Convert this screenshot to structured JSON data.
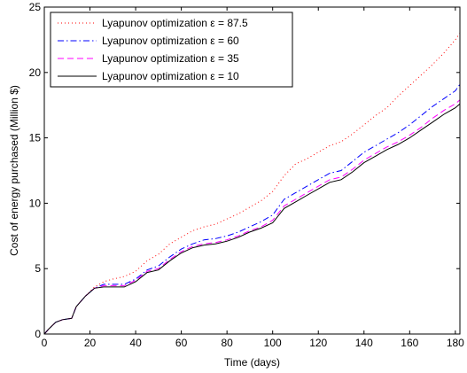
{
  "chart_data": {
    "type": "line",
    "title": "",
    "xlabel": "Time (days)",
    "ylabel": "Cost of energy purchased (Million $)",
    "xlim": [
      0,
      182
    ],
    "ylim": [
      0,
      25
    ],
    "xticks": [
      0,
      20,
      40,
      60,
      80,
      100,
      120,
      140,
      160,
      180
    ],
    "yticks": [
      0,
      5,
      10,
      15,
      20,
      25
    ],
    "grid": false,
    "legend_position": "top-left",
    "series": [
      {
        "name": "Lyapunov optimization ε = 87.5",
        "color": "#ff0000",
        "style": "dotted",
        "x": [
          0,
          2,
          5,
          8,
          12,
          14,
          18,
          22,
          26,
          30,
          35,
          40,
          45,
          50,
          55,
          60,
          65,
          70,
          75,
          80,
          85,
          90,
          95,
          100,
          105,
          110,
          115,
          120,
          125,
          130,
          135,
          140,
          145,
          150,
          155,
          160,
          165,
          170,
          175,
          180,
          182
        ],
        "y": [
          0,
          0.4,
          0.9,
          1.1,
          1.2,
          2.1,
          2.9,
          3.6,
          4.0,
          4.2,
          4.4,
          4.8,
          5.6,
          6.1,
          6.9,
          7.4,
          7.9,
          8.2,
          8.4,
          8.8,
          9.2,
          9.7,
          10.2,
          10.9,
          12.1,
          13.0,
          13.4,
          13.9,
          14.4,
          14.7,
          15.3,
          16.0,
          16.7,
          17.3,
          18.2,
          19.0,
          19.8,
          20.6,
          21.5,
          22.5,
          23.0
        ]
      },
      {
        "name": "Lyapunov optimization ε = 60",
        "color": "#0000ff",
        "style": "dashdot",
        "x": [
          0,
          2,
          5,
          8,
          12,
          14,
          18,
          22,
          26,
          30,
          35,
          40,
          45,
          50,
          55,
          60,
          65,
          70,
          75,
          80,
          85,
          90,
          95,
          100,
          105,
          110,
          115,
          120,
          125,
          130,
          135,
          140,
          145,
          150,
          155,
          160,
          165,
          170,
          175,
          180,
          182
        ],
        "y": [
          0,
          0.4,
          0.9,
          1.1,
          1.2,
          2.1,
          2.9,
          3.5,
          3.8,
          3.8,
          3.8,
          4.2,
          4.9,
          5.2,
          5.9,
          6.5,
          6.9,
          7.2,
          7.3,
          7.5,
          7.8,
          8.2,
          8.6,
          9.1,
          10.3,
          10.8,
          11.3,
          11.8,
          12.3,
          12.5,
          13.2,
          13.9,
          14.4,
          14.9,
          15.4,
          16.0,
          16.7,
          17.4,
          18.0,
          18.6,
          19.1
        ]
      },
      {
        "name": "Lyapunov optimization ε = 35",
        "color": "#ff00ff",
        "style": "dashed",
        "x": [
          0,
          2,
          5,
          8,
          12,
          14,
          18,
          22,
          26,
          30,
          35,
          40,
          45,
          50,
          55,
          60,
          65,
          70,
          75,
          80,
          85,
          90,
          95,
          100,
          105,
          110,
          115,
          120,
          125,
          130,
          135,
          140,
          145,
          150,
          155,
          160,
          165,
          170,
          175,
          180,
          182
        ],
        "y": [
          0,
          0.4,
          0.9,
          1.1,
          1.2,
          2.1,
          2.9,
          3.5,
          3.7,
          3.7,
          3.7,
          4.1,
          4.8,
          5.0,
          5.7,
          6.3,
          6.7,
          6.9,
          7.0,
          7.2,
          7.5,
          7.9,
          8.2,
          8.7,
          9.8,
          10.3,
          10.8,
          11.3,
          11.8,
          12.0,
          12.6,
          13.3,
          13.8,
          14.3,
          14.7,
          15.2,
          15.8,
          16.5,
          17.1,
          17.6,
          17.9
        ]
      },
      {
        "name": "Lyapunov optimization ε = 10",
        "color": "#000000",
        "style": "solid",
        "x": [
          0,
          2,
          5,
          8,
          12,
          14,
          18,
          22,
          26,
          30,
          35,
          40,
          45,
          50,
          55,
          60,
          65,
          70,
          75,
          80,
          85,
          90,
          95,
          100,
          105,
          110,
          115,
          120,
          125,
          130,
          135,
          140,
          145,
          150,
          155,
          160,
          165,
          170,
          175,
          180,
          182
        ],
        "y": [
          0,
          0.4,
          0.9,
          1.1,
          1.2,
          2.1,
          2.9,
          3.5,
          3.6,
          3.6,
          3.6,
          4.0,
          4.7,
          4.9,
          5.6,
          6.2,
          6.6,
          6.8,
          6.9,
          7.1,
          7.4,
          7.8,
          8.1,
          8.5,
          9.6,
          10.1,
          10.6,
          11.1,
          11.6,
          11.8,
          12.4,
          13.1,
          13.6,
          14.1,
          14.5,
          15.0,
          15.6,
          16.2,
          16.8,
          17.3,
          17.6
        ]
      }
    ]
  }
}
